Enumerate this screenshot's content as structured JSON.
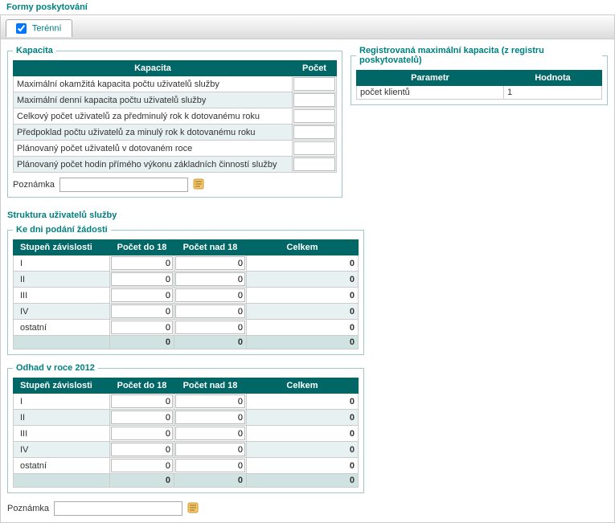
{
  "title": "Formy poskytování",
  "tab": {
    "label": "Terénní",
    "checked": true
  },
  "kapacita": {
    "legend": "Kapacita",
    "headers": [
      "Kapacita",
      "Počet"
    ],
    "rows": [
      "Maximální okamžitá kapacita počtu uživatelů služby",
      "Maximální denní kapacita počtu uživatelů služby",
      "Celkový počet uživatelů za předminulý rok k dotovanému roku",
      "Předpoklad počtu uživatelů za minulý rok k dotovanému roku",
      "Plánovaný počet uživatelů v dotovaném roce",
      "Plánovaný počet hodin přímého výkonu základních činností služby"
    ],
    "note_label": "Poznámka"
  },
  "registrovana": {
    "legend": "Registrovaná maximální kapacita (z registru poskytovatelů)",
    "headers": [
      "Parametr",
      "Hodnota"
    ],
    "rows": [
      {
        "param": "počet klientů",
        "hodnota": "1"
      }
    ]
  },
  "struktura": {
    "title": "Struktura uživatelů služby",
    "headers": [
      "Stupeň závislosti",
      "Počet do 18",
      "Počet nad 18",
      "Celkem"
    ],
    "section1": {
      "legend": "Ke dni podání žádosti",
      "rows": [
        {
          "label": "I",
          "do18": 0,
          "nad18": 0,
          "celkem": 0
        },
        {
          "label": "II",
          "do18": 0,
          "nad18": 0,
          "celkem": 0
        },
        {
          "label": "III",
          "do18": 0,
          "nad18": 0,
          "celkem": 0
        },
        {
          "label": "IV",
          "do18": 0,
          "nad18": 0,
          "celkem": 0
        },
        {
          "label": "ostatní",
          "do18": 0,
          "nad18": 0,
          "celkem": 0
        }
      ],
      "footer": {
        "do18": 0,
        "nad18": 0,
        "celkem": 0
      }
    },
    "section2": {
      "legend": "Odhad v roce 2012",
      "rows": [
        {
          "label": "I",
          "do18": 0,
          "nad18": 0,
          "celkem": 0
        },
        {
          "label": "II",
          "do18": 0,
          "nad18": 0,
          "celkem": 0
        },
        {
          "label": "III",
          "do18": 0,
          "nad18": 0,
          "celkem": 0
        },
        {
          "label": "IV",
          "do18": 0,
          "nad18": 0,
          "celkem": 0
        },
        {
          "label": "ostatní",
          "do18": 0,
          "nad18": 0,
          "celkem": 0
        }
      ],
      "footer": {
        "do18": 0,
        "nad18": 0,
        "celkem": 0
      }
    },
    "note_label": "Poznámka"
  }
}
